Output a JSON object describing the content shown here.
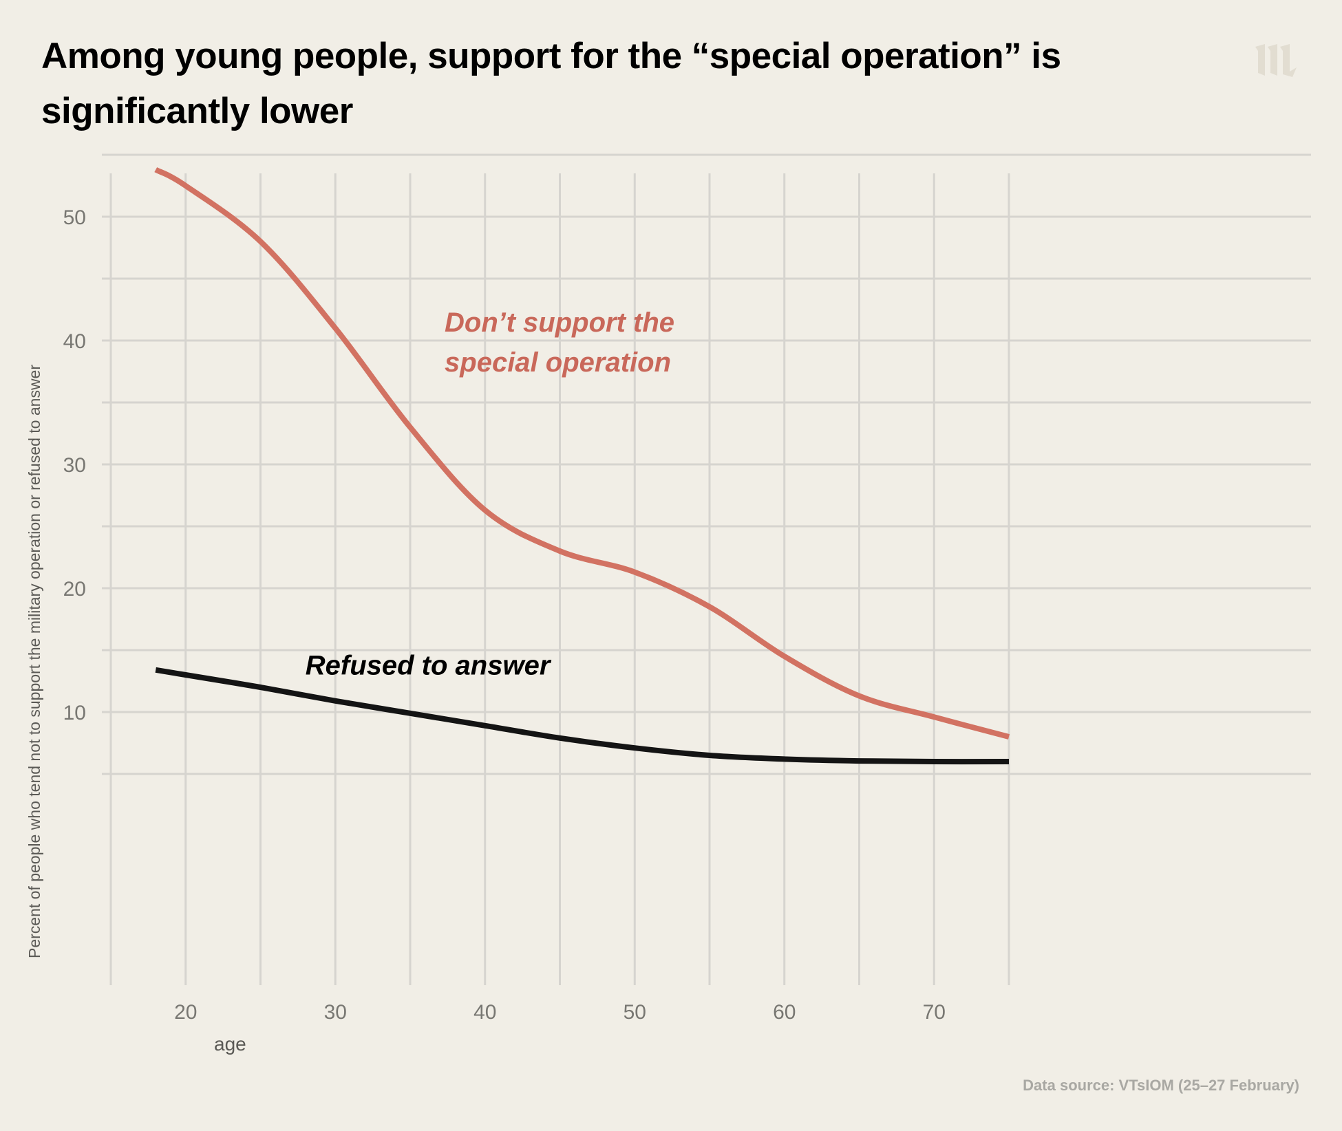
{
  "header": {
    "title_line1": "Among young people, support for the “special operation” is",
    "title_line2": "significantly lower",
    "logo_icon": "meduza-m-logo-icon"
  },
  "footer": {
    "source": "Data source: VTsIOM (25–27 February)"
  },
  "colors": {
    "background": "#f1eee6",
    "grid": "#d6d4cf",
    "dont_support": "#d27262",
    "refused": "#141414",
    "tick_label": "#787772",
    "logo": "#e2ddd1"
  },
  "chart_data": {
    "type": "line",
    "title": "Among young people, support for the “special operation” is significantly lower",
    "xlabel": "age",
    "ylabel": "Percent of people who tend not to support the military operation or refused to answer",
    "xlim": [
      15,
      75
    ],
    "ylim": [
      5,
      55
    ],
    "x_ticks": [
      20,
      30,
      40,
      50,
      60,
      70
    ],
    "x_grid": [
      15,
      20,
      25,
      30,
      35,
      40,
      45,
      50,
      55,
      60,
      65,
      70,
      75
    ],
    "y_ticks": [
      10,
      20,
      30,
      40,
      50
    ],
    "y_grid": [
      5,
      10,
      15,
      20,
      25,
      30,
      35,
      40,
      45,
      50,
      55
    ],
    "grid": true,
    "legend": "inline annotations",
    "x": [
      18,
      20,
      25,
      30,
      35,
      40,
      45,
      50,
      55,
      60,
      65,
      70,
      75
    ],
    "series": [
      {
        "name": "Don’t support the special operation",
        "label_line1": "Don’t support the",
        "label_line2": "special operation",
        "label_position": [
          37.3,
          41.5
        ],
        "color": "#d27262",
        "values": [
          53.8,
          52.5,
          48.0,
          41.0,
          33.0,
          26.3,
          23.0,
          21.3,
          18.5,
          14.5,
          11.3,
          9.6,
          8.0
        ]
      },
      {
        "name": "Refused to answer",
        "label_line1": "Refused to answer",
        "label_position": [
          28.0,
          13.8
        ],
        "color": "#141414",
        "values": [
          13.4,
          13.0,
          12.0,
          10.9,
          9.9,
          8.9,
          7.9,
          7.1,
          6.5,
          6.2,
          6.05,
          6.0,
          6.0
        ]
      }
    ]
  }
}
